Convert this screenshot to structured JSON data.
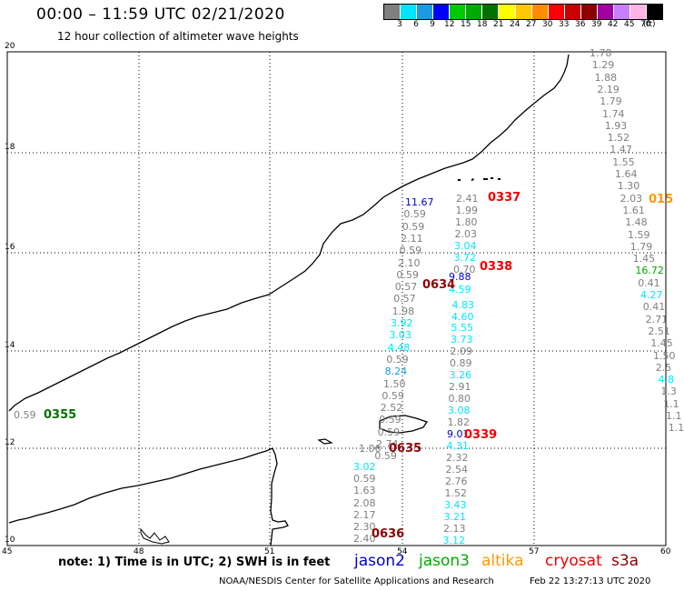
{
  "header": {
    "title": "00:00 – 11:59 UTC 02/21/2020",
    "subtitle": "12 hour collection of altimeter wave heights"
  },
  "legend": {
    "unit": "(ft)",
    "bins": [
      {
        "label": "3",
        "color": "#7f7f7f"
      },
      {
        "label": "6",
        "color": "#00e5ff"
      },
      {
        "label": "9",
        "color": "#1e9be0"
      },
      {
        "label": "12",
        "color": "#0000ff"
      },
      {
        "label": "15",
        "color": "#00c800"
      },
      {
        "label": "18",
        "color": "#00aa00"
      },
      {
        "label": "21",
        "color": "#007000"
      },
      {
        "label": "24",
        "color": "#ffff00"
      },
      {
        "label": "27",
        "color": "#ffc800"
      },
      {
        "label": "30",
        "color": "#ff8c00"
      },
      {
        "label": "33",
        "color": "#ff0000"
      },
      {
        "label": "36",
        "color": "#c80000"
      },
      {
        "label": "39",
        "color": "#8b0000"
      },
      {
        "label": "42",
        "color": "#a000a0"
      },
      {
        "label": "45",
        "color": "#c87dff"
      },
      {
        "label": "70",
        "color": "#ffb4e6"
      },
      {
        "label": "",
        "color": "#000000"
      }
    ]
  },
  "axes": {
    "lon_labels": [
      "45",
      "48",
      "51",
      "54",
      "57",
      "60"
    ],
    "lat_labels": [
      "20",
      "18",
      "16",
      "14",
      "12",
      "10"
    ]
  },
  "note": "note: 1) Time is in UTC; 2) SWH is in feet",
  "missions": [
    {
      "name": "jason2",
      "color": "#0000cc"
    },
    {
      "name": "jason3",
      "color": "#00aa00"
    },
    {
      "name": "altika",
      "color": "#ff9900"
    },
    {
      "name": "cryosat",
      "color": "#ee0000"
    },
    {
      "name": "s3a",
      "color": "#8b0000"
    }
  ],
  "credit_left": "NOAA/NESDIS Center for Satellite Applications and Research",
  "credit_right": "Feb 22 13:27:13 UTC 2020",
  "time_labels": [
    "0337",
    "0338",
    "0339",
    "0634",
    "0635",
    "0636",
    "0355",
    "015"
  ],
  "track_a": [
    "11.67",
    "0.59",
    "0.59",
    "2.11",
    "0.59",
    "2.10",
    "0.59",
    "0.57",
    "0.57",
    "1.98",
    "3.92",
    "3.03",
    "4.48",
    "0.59",
    "8.24",
    "1.50",
    "0.59",
    "2.52",
    "0.59",
    "0.59",
    "2.74",
    "0.59",
    "1.06"
  ],
  "track_b": [
    "2.41",
    "1.99",
    "1.80",
    "2.03",
    "3.04",
    "3.72",
    "0.70",
    "9.88",
    "4.59",
    "4.83",
    "4.60",
    "5.55",
    "3.73",
    "2.09",
    "0.89",
    "3.26",
    "2.91",
    "0.80",
    "3.08",
    "1.82",
    "9.01",
    "4.31",
    "2.32",
    "2.54",
    "2.76",
    "1.52",
    "3.43",
    "3.21",
    "2.13",
    "3.12"
  ],
  "track_c": [
    "3.02",
    "0.59",
    "1.63",
    "2.08",
    "2.17",
    "2.30",
    "2.40"
  ],
  "track_d": [
    "1.78",
    "1.29",
    "1.88",
    "2.19",
    "1.79",
    "1.74",
    "1.93",
    "1.52",
    "1.47",
    "1.55",
    "1.64",
    "1.30",
    "2.03",
    "1.61",
    "1.48",
    "1.59",
    "1.79",
    "1.45",
    "16.72",
    "0.41",
    "4.27",
    "0.41",
    "2.71",
    "2.51",
    "1.45",
    "1.50",
    "2.5",
    "4.8",
    "1.3",
    "1.1",
    "1.1",
    "1.1"
  ],
  "track_e": [
    "0.59"
  ]
}
